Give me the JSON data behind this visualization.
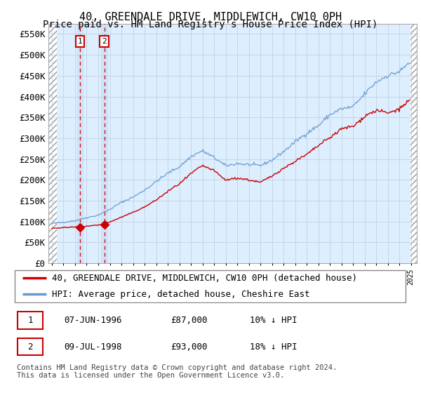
{
  "title": "40, GREENDALE DRIVE, MIDDLEWICH, CW10 0PH",
  "subtitle": "Price paid vs. HM Land Registry's House Price Index (HPI)",
  "ylim": [
    0,
    575000
  ],
  "yticks": [
    0,
    50000,
    100000,
    150000,
    200000,
    250000,
    300000,
    350000,
    400000,
    450000,
    500000,
    550000
  ],
  "xlim_start": 1993.7,
  "xlim_end": 2025.5,
  "sale1_date": 1996.44,
  "sale1_price": 87000,
  "sale1_label": "1",
  "sale2_date": 1998.52,
  "sale2_price": 93000,
  "sale2_label": "2",
  "legend_line1": "40, GREENDALE DRIVE, MIDDLEWICH, CW10 0PH (detached house)",
  "legend_line2": "HPI: Average price, detached house, Cheshire East",
  "table_row1_num": "1",
  "table_row1_date": "07-JUN-1996",
  "table_row1_price": "£87,000",
  "table_row1_hpi": "10% ↓ HPI",
  "table_row2_num": "2",
  "table_row2_date": "09-JUL-1998",
  "table_row2_price": "£93,000",
  "table_row2_hpi": "18% ↓ HPI",
  "footer": "Contains HM Land Registry data © Crown copyright and database right 2024.\nThis data is licensed under the Open Government Licence v3.0.",
  "line_color_red": "#cc0000",
  "line_color_blue": "#6699cc",
  "grid_color": "#bbccdd",
  "bg_color": "#ddeeff",
  "title_fontsize": 11,
  "subtitle_fontsize": 10,
  "axis_fontsize": 9,
  "legend_fontsize": 9,
  "table_fontsize": 9,
  "footer_fontsize": 7.5,
  "hpi_anchors_x": [
    1994.0,
    1995.0,
    1996.0,
    1997.0,
    1998.0,
    1999.0,
    2000.0,
    2001.0,
    2002.0,
    2003.0,
    2004.0,
    2005.0,
    2006.0,
    2007.0,
    2008.0,
    2009.0,
    2010.0,
    2011.0,
    2012.0,
    2013.0,
    2014.0,
    2015.0,
    2016.0,
    2017.0,
    2018.0,
    2019.0,
    2020.0,
    2021.0,
    2022.0,
    2023.0,
    2024.0,
    2024.8
  ],
  "hpi_anchors_y": [
    95000,
    98000,
    102000,
    109000,
    115000,
    128000,
    145000,
    158000,
    175000,
    195000,
    215000,
    230000,
    255000,
    270000,
    255000,
    235000,
    240000,
    238000,
    235000,
    248000,
    268000,
    290000,
    310000,
    330000,
    355000,
    370000,
    375000,
    405000,
    435000,
    450000,
    460000,
    480000
  ],
  "pp_anchors_x": [
    1994.0,
    1996.44,
    1998.52,
    2000.0,
    2001.0,
    2002.0,
    2003.0,
    2004.0,
    2005.0,
    2006.0,
    2007.0,
    2008.0,
    2009.0,
    2010.0,
    2011.0,
    2012.0,
    2013.0,
    2014.0,
    2015.0,
    2016.0,
    2017.0,
    2018.0,
    2019.0,
    2020.0,
    2021.0,
    2022.0,
    2023.0,
    2024.0,
    2024.8
  ],
  "pp_anchors_y": [
    84000,
    87000,
    93000,
    110000,
    122000,
    135000,
    152000,
    172000,
    190000,
    215000,
    235000,
    222000,
    200000,
    205000,
    200000,
    195000,
    210000,
    230000,
    248000,
    265000,
    285000,
    305000,
    325000,
    330000,
    355000,
    368000,
    360000,
    370000,
    390000
  ]
}
